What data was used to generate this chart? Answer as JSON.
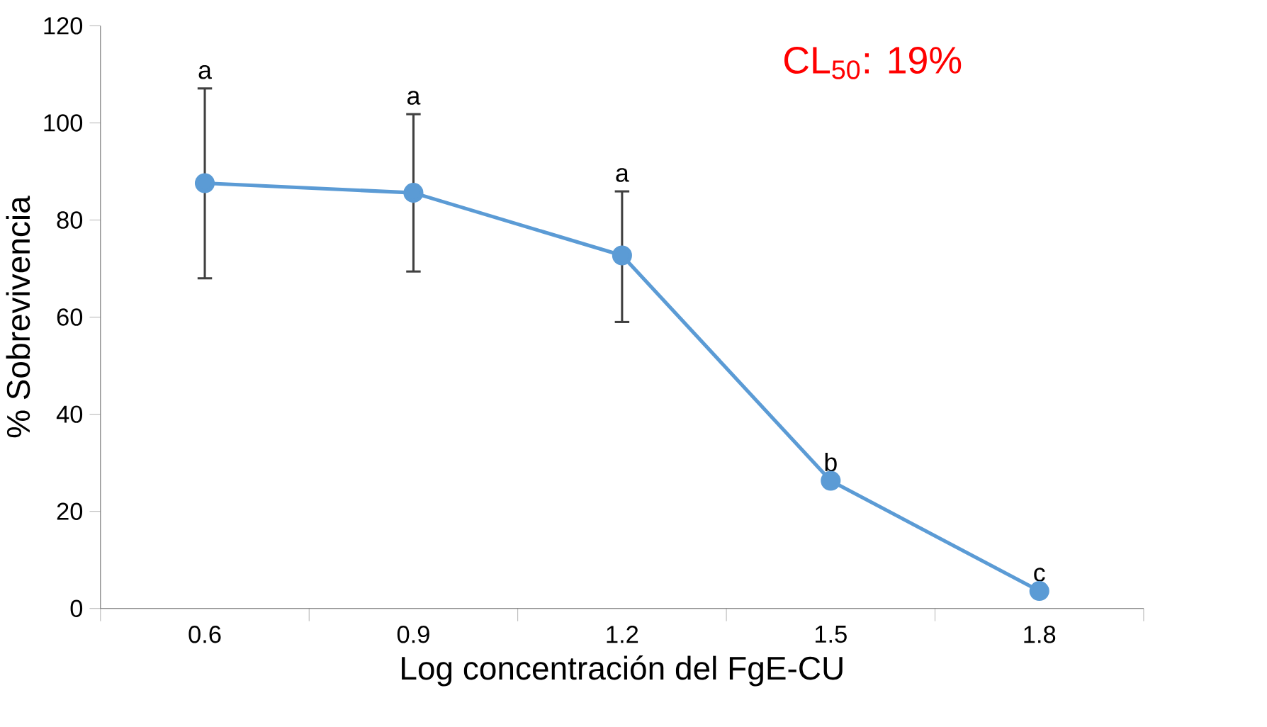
{
  "chart_data": {
    "type": "line",
    "xlabel": "Log concentración del FgE-CU",
    "ylabel": "% Sobrevivencia",
    "categories": [
      "0.6",
      "0.9",
      "1.2",
      "1.5",
      "1.8"
    ],
    "series": [
      {
        "color": "#5b9bd5",
        "values": [
          87.6,
          85.6,
          72.7,
          26.3,
          3.6
        ],
        "errors": [
          [
            68,
            107.1
          ],
          [
            69.4,
            101.8
          ],
          [
            59,
            85.9
          ],
          null,
          null
        ]
      }
    ],
    "ylim": [
      0,
      120
    ],
    "yticks": [
      0,
      20,
      40,
      60,
      80,
      100,
      120
    ],
    "grid": false,
    "marker": "circle",
    "line_style": "solid",
    "annotations": [
      {
        "text": "a",
        "x": "0.6",
        "y": 107.1
      },
      {
        "text": "a",
        "x": "0.9",
        "y": 101.8
      },
      {
        "text": "a",
        "x": "1.2",
        "y": 85.9
      },
      {
        "text": "b",
        "x": "1.5",
        "y": 26.3
      },
      {
        "text": "c",
        "x": "1.8",
        "y": 3.6
      },
      "CL$_{50}$: 19%"
    ]
  }
}
